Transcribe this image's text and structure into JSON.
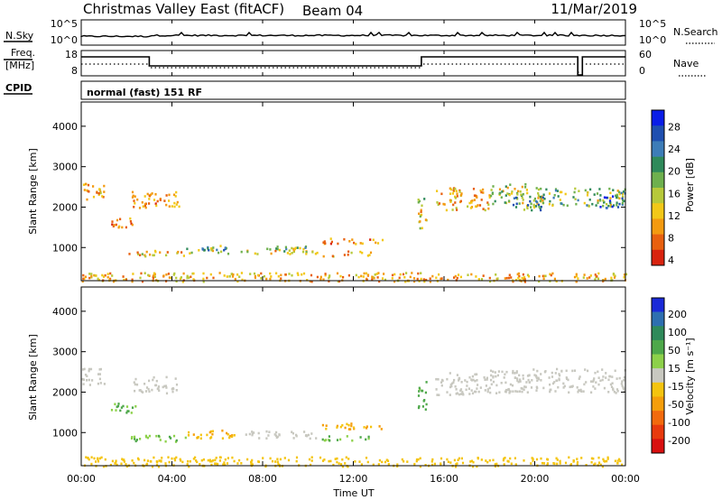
{
  "header": {
    "station": "Christmas Valley East (fitACF)",
    "beam": "Beam 04",
    "date": "11/Mar/2019"
  },
  "panels": {
    "nsky": {
      "label": "N.Sky",
      "ticks": [
        "10^5",
        "10^0"
      ],
      "right_label": "N.Search",
      "right_ticks": [
        "10^5",
        "10^0"
      ]
    },
    "freq": {
      "label_line1": "Freq.",
      "label_line2": "[MHz]",
      "ticks": [
        "18",
        "8"
      ],
      "right_label": "Nave",
      "right_ticks": [
        "60",
        "0"
      ]
    },
    "cpid": {
      "label": "CPID",
      "value": "normal (fast) 151 RF"
    },
    "power": {
      "ylabel": "Slant Range [km]",
      "cbar_label": "Power [dB]"
    },
    "velocity": {
      "ylabel": "Slant Range [km]",
      "cbar_label": "Velocity [m s⁻¹]"
    }
  },
  "xaxis": {
    "label": "Time UT",
    "ticks": [
      "00:00",
      "04:00",
      "08:00",
      "12:00",
      "16:00",
      "20:00",
      "00:00"
    ]
  },
  "chart_data": [
    {
      "type": "heatmap",
      "name": "power",
      "title": "",
      "xlabel": "Time UT",
      "ylabel": "Slant Range [km]",
      "xlim": [
        0,
        24
      ],
      "ylim": [
        180,
        4600
      ],
      "yticks": [
        1000,
        2000,
        3000,
        4000
      ],
      "colorbar": {
        "label": "Power [dB]",
        "ticks": [
          4,
          8,
          12,
          16,
          20,
          24,
          28
        ],
        "colors": [
          "#0a1de8",
          "#1f4fb0",
          "#3d7db8",
          "#2f8a5a",
          "#6eb04e",
          "#b7c93a",
          "#f2c818",
          "#f39a10",
          "#e8600f",
          "#d9230f"
        ]
      },
      "regions": [
        {
          "t": [
            0.0,
            1.0
          ],
          "r": [
            2200,
            2600
          ],
          "v": 8
        },
        {
          "t": [
            1.3,
            2.4
          ],
          "r": [
            1500,
            1750
          ],
          "v": 6
        },
        {
          "t": [
            2.2,
            4.3
          ],
          "r": [
            2000,
            2400
          ],
          "v": 7
        },
        {
          "t": [
            2.0,
            4.6
          ],
          "r": [
            800,
            950
          ],
          "v": 10
        },
        {
          "t": [
            4.6,
            6.5
          ],
          "r": [
            870,
            1000
          ],
          "v": 14
        },
        {
          "t": [
            5.2,
            7.0
          ],
          "r": [
            960,
            1080
          ],
          "v": 19
        },
        {
          "t": [
            7.0,
            10.5
          ],
          "r": [
            860,
            1000
          ],
          "v": 12
        },
        {
          "t": [
            8.2,
            10.0
          ],
          "r": [
            930,
            1060
          ],
          "v": 16
        },
        {
          "t": [
            10.5,
            12.8
          ],
          "r": [
            800,
            940
          ],
          "v": 9
        },
        {
          "t": [
            10.6,
            13.3
          ],
          "r": [
            1100,
            1250
          ],
          "v": 7
        },
        {
          "t": [
            14.8,
            15.2
          ],
          "r": [
            1500,
            2300
          ],
          "v": 12
        },
        {
          "t": [
            15.6,
            18.0
          ],
          "r": [
            1950,
            2500
          ],
          "v": 9
        },
        {
          "t": [
            18.0,
            20.5
          ],
          "r": [
            2100,
            2600
          ],
          "v": 14
        },
        {
          "t": [
            19.0,
            20.6
          ],
          "r": [
            1950,
            2300
          ],
          "v": 20
        },
        {
          "t": [
            20.6,
            24.0
          ],
          "r": [
            2050,
            2500
          ],
          "v": 15
        },
        {
          "t": [
            22.5,
            23.9
          ],
          "r": [
            2000,
            2300
          ],
          "v": 22
        },
        {
          "t": [
            0.0,
            24.0
          ],
          "r": [
            180,
            400
          ],
          "v": 9
        }
      ]
    },
    {
      "type": "heatmap",
      "name": "velocity",
      "title": "",
      "xlabel": "Time UT",
      "ylabel": "Slant Range [km]",
      "xlim": [
        0,
        24
      ],
      "ylim": [
        180,
        4600
      ],
      "yticks": [
        1000,
        2000,
        3000,
        4000
      ],
      "colorbar": {
        "label": "Velocity [m s⁻¹]",
        "ticks": [
          200,
          100,
          50,
          15,
          -15,
          -50,
          -100,
          -200
        ],
        "colors": [
          "#1a2ad8",
          "#2e6fb0",
          "#2f8a5a",
          "#4ea84a",
          "#8dd14a",
          "#c8c8c0",
          "#f4c40f",
          "#f59e0b",
          "#f26a0d",
          "#e83a0d",
          "#d91010"
        ]
      },
      "regions": [
        {
          "t": [
            0.0,
            1.0
          ],
          "r": [
            2200,
            2600
          ],
          "v": 0
        },
        {
          "t": [
            1.3,
            2.4
          ],
          "r": [
            1500,
            1750
          ],
          "v": 40
        },
        {
          "t": [
            2.2,
            4.3
          ],
          "r": [
            2000,
            2400
          ],
          "v": 0
        },
        {
          "t": [
            2.0,
            4.6
          ],
          "r": [
            800,
            950
          ],
          "v": 30
        },
        {
          "t": [
            4.6,
            7.2
          ],
          "r": [
            880,
            1080
          ],
          "v": -40
        },
        {
          "t": [
            7.2,
            10.5
          ],
          "r": [
            880,
            1060
          ],
          "v": 0
        },
        {
          "t": [
            10.5,
            12.8
          ],
          "r": [
            820,
            940
          ],
          "v": 30
        },
        {
          "t": [
            10.6,
            13.3
          ],
          "r": [
            1100,
            1250
          ],
          "v": -60
        },
        {
          "t": [
            14.8,
            15.2
          ],
          "r": [
            1500,
            2300
          ],
          "v": 40
        },
        {
          "t": [
            15.6,
            18.0
          ],
          "r": [
            1950,
            2500
          ],
          "v": 0
        },
        {
          "t": [
            18.0,
            24.0
          ],
          "r": [
            2000,
            2600
          ],
          "v": 0
        },
        {
          "t": [
            0.0,
            24.0
          ],
          "r": [
            180,
            420
          ],
          "v": -30
        }
      ]
    }
  ]
}
